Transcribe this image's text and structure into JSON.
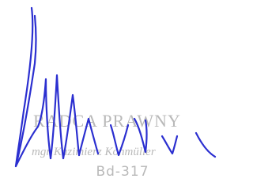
{
  "stamp": {
    "title": "RADCA PRAWNY",
    "name": "mgr Kazimierz Kohmüller",
    "number": "Bd-317"
  }
}
